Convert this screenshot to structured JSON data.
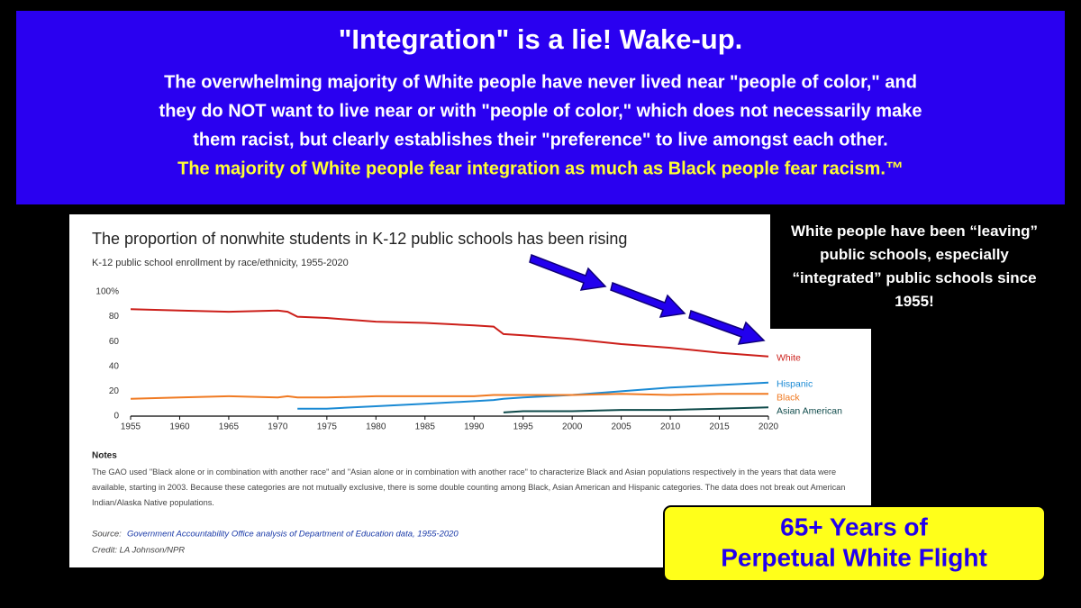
{
  "banner": {
    "title": "\"Integration\" is a lie!   Wake-up.",
    "lines": [
      "The overwhelming majority of White people have never lived near \"people of color,\" and",
      "they do NOT want to live near or with \"people of color,\" which does not necessarily make",
      "them racist, but clearly establishes their \"preference\" to live amongst each other."
    ],
    "highlight": "The majority of White people fear integration as much as Black people fear racism.™"
  },
  "side_note": "White people have been “leaving” public schools, especially “integrated” public schools since 1955!",
  "callout": [
    "65+ Years of",
    "Perpetual White Flight"
  ],
  "chart_data": {
    "type": "line",
    "title": "The proportion of nonwhite students in K-12 public schools has been rising",
    "subtitle": "K-12 public school enrollment by race/ethnicity, 1955-2020",
    "x": [
      1955,
      1960,
      1965,
      1970,
      1971,
      1972,
      1975,
      1980,
      1985,
      1990,
      1992,
      1993,
      1995,
      2000,
      2005,
      2010,
      2015,
      2020
    ],
    "series": [
      {
        "name": "White",
        "color": "#cc1f1a",
        "values": [
          86,
          85,
          84,
          85,
          84,
          80,
          79,
          76,
          75,
          73,
          72,
          66,
          65,
          62,
          58,
          55,
          51,
          48
        ]
      },
      {
        "name": "Hispanic",
        "color": "#1a8ad4",
        "values": [
          null,
          null,
          null,
          null,
          null,
          6,
          6,
          8,
          10,
          12,
          13,
          14,
          15,
          17,
          20,
          23,
          25,
          27
        ]
      },
      {
        "name": "Black",
        "color": "#f07a22",
        "values": [
          14,
          15,
          16,
          15,
          16,
          15,
          15,
          16,
          16,
          16,
          17,
          17,
          17,
          17,
          18,
          17,
          18,
          18
        ]
      },
      {
        "name": "Asian American",
        "color": "#0e4a4a",
        "values": [
          null,
          null,
          null,
          null,
          null,
          null,
          null,
          null,
          null,
          null,
          null,
          3,
          4,
          4,
          5,
          5,
          6,
          7
        ]
      }
    ],
    "xlim": [
      1955,
      2020
    ],
    "xticks": [
      1955,
      1960,
      1965,
      1970,
      1975,
      1980,
      1985,
      1990,
      1995,
      2000,
      2005,
      2010,
      2015,
      2020
    ],
    "ylim": [
      0,
      100
    ],
    "yticks": [
      0,
      20,
      40,
      60,
      80,
      {
        "value": 100,
        "label": "100%"
      }
    ],
    "grid": false,
    "notes_heading": "Notes",
    "notes": "The GAO used \"Black alone or in combination with another race\" and \"Asian alone or in combination with another race\" to characterize Black and Asian populations respectively in the years that data were available, starting in 2003. Because these categories are not mutually exclusive, there is some double counting among Black, Asian American and Hispanic categories. The data does not break out American Indian/Alaska Native populations.",
    "source_label": "Source:",
    "source": "Government Accountability Office analysis of Department of Education data, 1955-2020",
    "credit": "Credit: LA Johnson/NPR"
  }
}
